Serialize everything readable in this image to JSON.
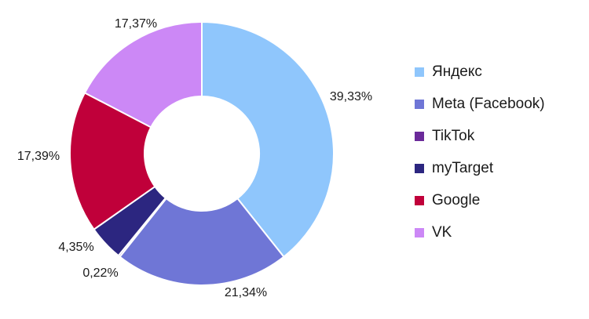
{
  "chart_data": {
    "type": "pie",
    "donut": true,
    "legend_position": "right",
    "slices": [
      {
        "name": "Яндекс",
        "value": 39.33,
        "label": "39,33%",
        "color": "#8fc6fc"
      },
      {
        "name": "Meta (Facebook)",
        "value": 21.34,
        "label": "21,34%",
        "color": "#6f76d6"
      },
      {
        "name": "TikTok",
        "value": 0.22,
        "label": "0,22%",
        "color": "#6b2a9a"
      },
      {
        "name": "myTarget",
        "value": 4.35,
        "label": "4,35%",
        "color": "#2c2680"
      },
      {
        "name": "Google",
        "value": 17.39,
        "label": "17,39%",
        "color": "#c0003a"
      },
      {
        "name": "VK",
        "value": 17.37,
        "label": "17,37%",
        "color": "#cc88f6"
      }
    ]
  }
}
